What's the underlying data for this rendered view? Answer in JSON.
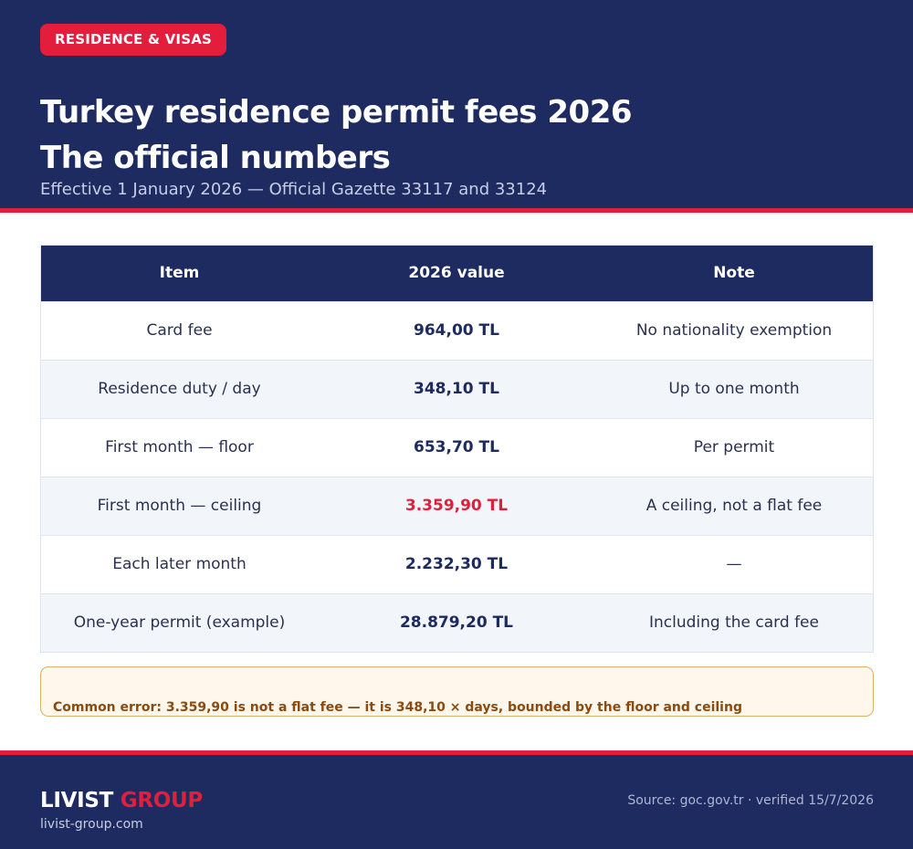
{
  "header": {
    "badge": "RESIDENCE & VISAS",
    "title_line1": "Turkey residence permit fees 2026",
    "title_line2": "The official numbers",
    "subtitle": "Effective 1 January 2026 — Official Gazette 33117 and 33124"
  },
  "table": {
    "columns": [
      "Item",
      "2026 value",
      "Note"
    ],
    "rows": [
      {
        "item": "Card fee",
        "value": "964,00 TL",
        "note": "No nationality exemption"
      },
      {
        "item": "Residence duty / day",
        "value": "348,10 TL",
        "note": "Up to one month"
      },
      {
        "item": "First month — floor",
        "value": "653,70 TL",
        "note": "Per permit"
      },
      {
        "item": "First month — ceiling",
        "value": "3.359,90 TL",
        "note": "A ceiling, not a flat fee"
      },
      {
        "item": "Each later month",
        "value": "2.232,30 TL",
        "note": "—"
      },
      {
        "item": "One-year permit (example)",
        "value": "28.879,20 TL",
        "note": "Including the card fee"
      }
    ]
  },
  "callout": {
    "text": "Common error: 3.359,90 is not a flat fee — it is 348,10 × days, bounded by the floor and ceiling"
  },
  "footer": {
    "brand_part1": "LIVIST",
    "brand_part2": "GROUP",
    "domain": "livist-group.com",
    "source": "Source: goc.gov.tr · verified 15/7/2026"
  },
  "colors": {
    "navy": "#1e2b61",
    "accent_red": "#e31e3c",
    "callout_bg": "#fff7eb",
    "callout_text": "#8a4a10"
  }
}
